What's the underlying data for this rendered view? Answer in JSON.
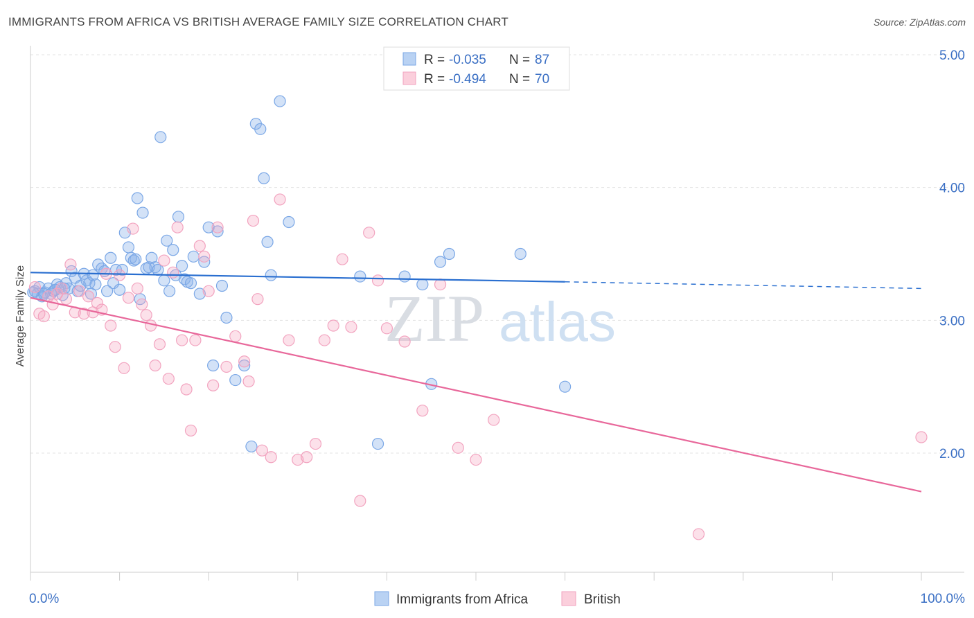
{
  "header": {
    "title": "IMMIGRANTS FROM AFRICA VS BRITISH AVERAGE FAMILY SIZE CORRELATION CHART",
    "source": "Source: ZipAtlas.com"
  },
  "legend_top": {
    "rows": [
      {
        "r_label": "R = ",
        "r_value": "-0.035",
        "n_label": "N = ",
        "n_value": "87"
      },
      {
        "r_label": "R = ",
        "r_value": "-0.494",
        "n_label": "N = ",
        "n_value": "70"
      }
    ]
  },
  "watermark": {
    "zip": "ZIP",
    "atlas": "atlas"
  },
  "chart_data": {
    "type": "scatter",
    "ylabel": "Average Family Size",
    "xlim": [
      0,
      100
    ],
    "ylim": [
      1.0,
      5.2
    ],
    "x_tick_labels": [
      "0.0%",
      "100.0%"
    ],
    "y_ticks": [
      2.0,
      3.0,
      4.0,
      5.0
    ],
    "y_tick_labels": [
      "2.00",
      "3.00",
      "4.00",
      "5.00"
    ],
    "grid": true,
    "legend_position": "top-center",
    "colors": {
      "africa": "#7aa7e6",
      "british": "#f2a3bf",
      "africa_line": "#2a6fd0",
      "british_line": "#e8679a",
      "accent": "#3a6fc4"
    },
    "series": [
      {
        "name": "Immigrants from Africa",
        "r": -0.035,
        "n": 87,
        "trend": {
          "x0": 0,
          "y0": 3.36,
          "x1": 60,
          "y1": 3.29,
          "dash_to_x": 100,
          "dash_to_y": 3.24
        },
        "points": [
          [
            0.5,
            3.22
          ],
          [
            0.8,
            3.2
          ],
          [
            1.0,
            3.25
          ],
          [
            1.3,
            3.18
          ],
          [
            1.6,
            3.21
          ],
          [
            2.0,
            3.24
          ],
          [
            2.3,
            3.2
          ],
          [
            2.6,
            3.22
          ],
          [
            3.0,
            3.27
          ],
          [
            3.3,
            3.25
          ],
          [
            3.6,
            3.19
          ],
          [
            4.0,
            3.28
          ],
          [
            4.3,
            3.24
          ],
          [
            4.6,
            3.37
          ],
          [
            5.0,
            3.32
          ],
          [
            5.3,
            3.22
          ],
          [
            5.6,
            3.26
          ],
          [
            6.0,
            3.35
          ],
          [
            6.3,
            3.3
          ],
          [
            6.6,
            3.28
          ],
          [
            7.0,
            3.34
          ],
          [
            7.3,
            3.27
          ],
          [
            7.6,
            3.42
          ],
          [
            8.0,
            3.39
          ],
          [
            8.3,
            3.37
          ],
          [
            8.6,
            3.22
          ],
          [
            9.0,
            3.47
          ],
          [
            9.3,
            3.28
          ],
          [
            9.6,
            3.38
          ],
          [
            10.0,
            3.23
          ],
          [
            10.3,
            3.38
          ],
          [
            10.6,
            3.66
          ],
          [
            11.0,
            3.55
          ],
          [
            11.3,
            3.47
          ],
          [
            11.6,
            3.45
          ],
          [
            12.0,
            3.92
          ],
          [
            12.3,
            3.16
          ],
          [
            12.6,
            3.81
          ],
          [
            13.0,
            3.39
          ],
          [
            13.3,
            3.4
          ],
          [
            13.6,
            3.47
          ],
          [
            14.0,
            3.4
          ],
          [
            14.3,
            3.38
          ],
          [
            14.6,
            4.38
          ],
          [
            15.0,
            3.3
          ],
          [
            15.3,
            3.6
          ],
          [
            15.6,
            3.22
          ],
          [
            16.0,
            3.53
          ],
          [
            16.3,
            3.34
          ],
          [
            16.6,
            3.78
          ],
          [
            17.0,
            3.41
          ],
          [
            17.3,
            3.31
          ],
          [
            17.6,
            3.29
          ],
          [
            18.0,
            3.28
          ],
          [
            18.3,
            3.48
          ],
          [
            19.0,
            3.2
          ],
          [
            19.5,
            3.44
          ],
          [
            20.0,
            3.7
          ],
          [
            20.5,
            2.66
          ],
          [
            21.0,
            3.67
          ],
          [
            21.5,
            3.26
          ],
          [
            22.0,
            3.02
          ],
          [
            23.0,
            2.55
          ],
          [
            24.0,
            2.66
          ],
          [
            24.8,
            2.05
          ],
          [
            25.3,
            4.48
          ],
          [
            25.8,
            4.44
          ],
          [
            26.2,
            4.07
          ],
          [
            26.6,
            3.59
          ],
          [
            27.0,
            3.34
          ],
          [
            28.0,
            4.65
          ],
          [
            29.0,
            3.74
          ],
          [
            37.0,
            3.33
          ],
          [
            39.0,
            2.07
          ],
          [
            42.0,
            3.33
          ],
          [
            44.0,
            3.27
          ],
          [
            45.0,
            2.52
          ],
          [
            46.0,
            3.44
          ],
          [
            47.0,
            3.5
          ],
          [
            55.0,
            3.5
          ],
          [
            60.0,
            2.5
          ],
          [
            0.3,
            3.21
          ],
          [
            1.5,
            3.2
          ],
          [
            2.8,
            3.23
          ],
          [
            3.8,
            3.24
          ],
          [
            6.8,
            3.2
          ],
          [
            11.8,
            3.46
          ]
        ]
      },
      {
        "name": "British",
        "r": -0.494,
        "n": 70,
        "trend": {
          "x0": 0,
          "y0": 3.17,
          "x1": 100,
          "y1": 1.71
        },
        "points": [
          [
            0.5,
            3.25
          ],
          [
            1.0,
            3.05
          ],
          [
            1.5,
            3.03
          ],
          [
            2.0,
            3.18
          ],
          [
            2.5,
            3.12
          ],
          [
            3.0,
            3.2
          ],
          [
            3.5,
            3.24
          ],
          [
            4.0,
            3.16
          ],
          [
            4.5,
            3.42
          ],
          [
            5.0,
            3.06
          ],
          [
            5.5,
            3.22
          ],
          [
            6.0,
            3.05
          ],
          [
            6.5,
            3.18
          ],
          [
            7.0,
            3.06
          ],
          [
            7.5,
            3.13
          ],
          [
            8.0,
            3.08
          ],
          [
            8.5,
            3.35
          ],
          [
            9.0,
            2.96
          ],
          [
            9.5,
            2.8
          ],
          [
            10.0,
            3.34
          ],
          [
            10.5,
            2.64
          ],
          [
            11.0,
            3.17
          ],
          [
            11.5,
            3.69
          ],
          [
            12.0,
            3.24
          ],
          [
            12.5,
            3.12
          ],
          [
            13.0,
            3.04
          ],
          [
            13.5,
            2.96
          ],
          [
            14.0,
            2.66
          ],
          [
            14.5,
            2.82
          ],
          [
            15.0,
            3.45
          ],
          [
            15.5,
            2.56
          ],
          [
            16.0,
            3.36
          ],
          [
            16.5,
            3.7
          ],
          [
            17.0,
            2.85
          ],
          [
            17.5,
            2.48
          ],
          [
            18.0,
            2.17
          ],
          [
            18.5,
            2.85
          ],
          [
            19.0,
            3.56
          ],
          [
            19.5,
            3.48
          ],
          [
            20.0,
            3.22
          ],
          [
            20.5,
            2.51
          ],
          [
            21.0,
            3.7
          ],
          [
            22.0,
            2.65
          ],
          [
            23.0,
            2.88
          ],
          [
            24.0,
            2.69
          ],
          [
            24.5,
            2.54
          ],
          [
            25.0,
            3.75
          ],
          [
            25.5,
            3.16
          ],
          [
            26.0,
            2.02
          ],
          [
            27.0,
            1.97
          ],
          [
            28.0,
            3.91
          ],
          [
            29.0,
            2.85
          ],
          [
            30.0,
            1.95
          ],
          [
            31.0,
            1.97
          ],
          [
            32.0,
            2.07
          ],
          [
            33.0,
            2.85
          ],
          [
            34.0,
            2.96
          ],
          [
            35.0,
            3.46
          ],
          [
            36.0,
            2.95
          ],
          [
            37.0,
            1.64
          ],
          [
            38.0,
            3.66
          ],
          [
            39.0,
            3.3
          ],
          [
            40.0,
            2.94
          ],
          [
            42.0,
            2.84
          ],
          [
            44.0,
            2.32
          ],
          [
            46.0,
            3.27
          ],
          [
            48.0,
            2.04
          ],
          [
            50.0,
            1.95
          ],
          [
            52.0,
            2.25
          ],
          [
            75.0,
            1.39
          ],
          [
            100.0,
            2.12
          ]
        ]
      }
    ]
  },
  "bottom_legend": {
    "items": [
      {
        "label": "Immigrants from Africa"
      },
      {
        "label": "British"
      }
    ]
  }
}
